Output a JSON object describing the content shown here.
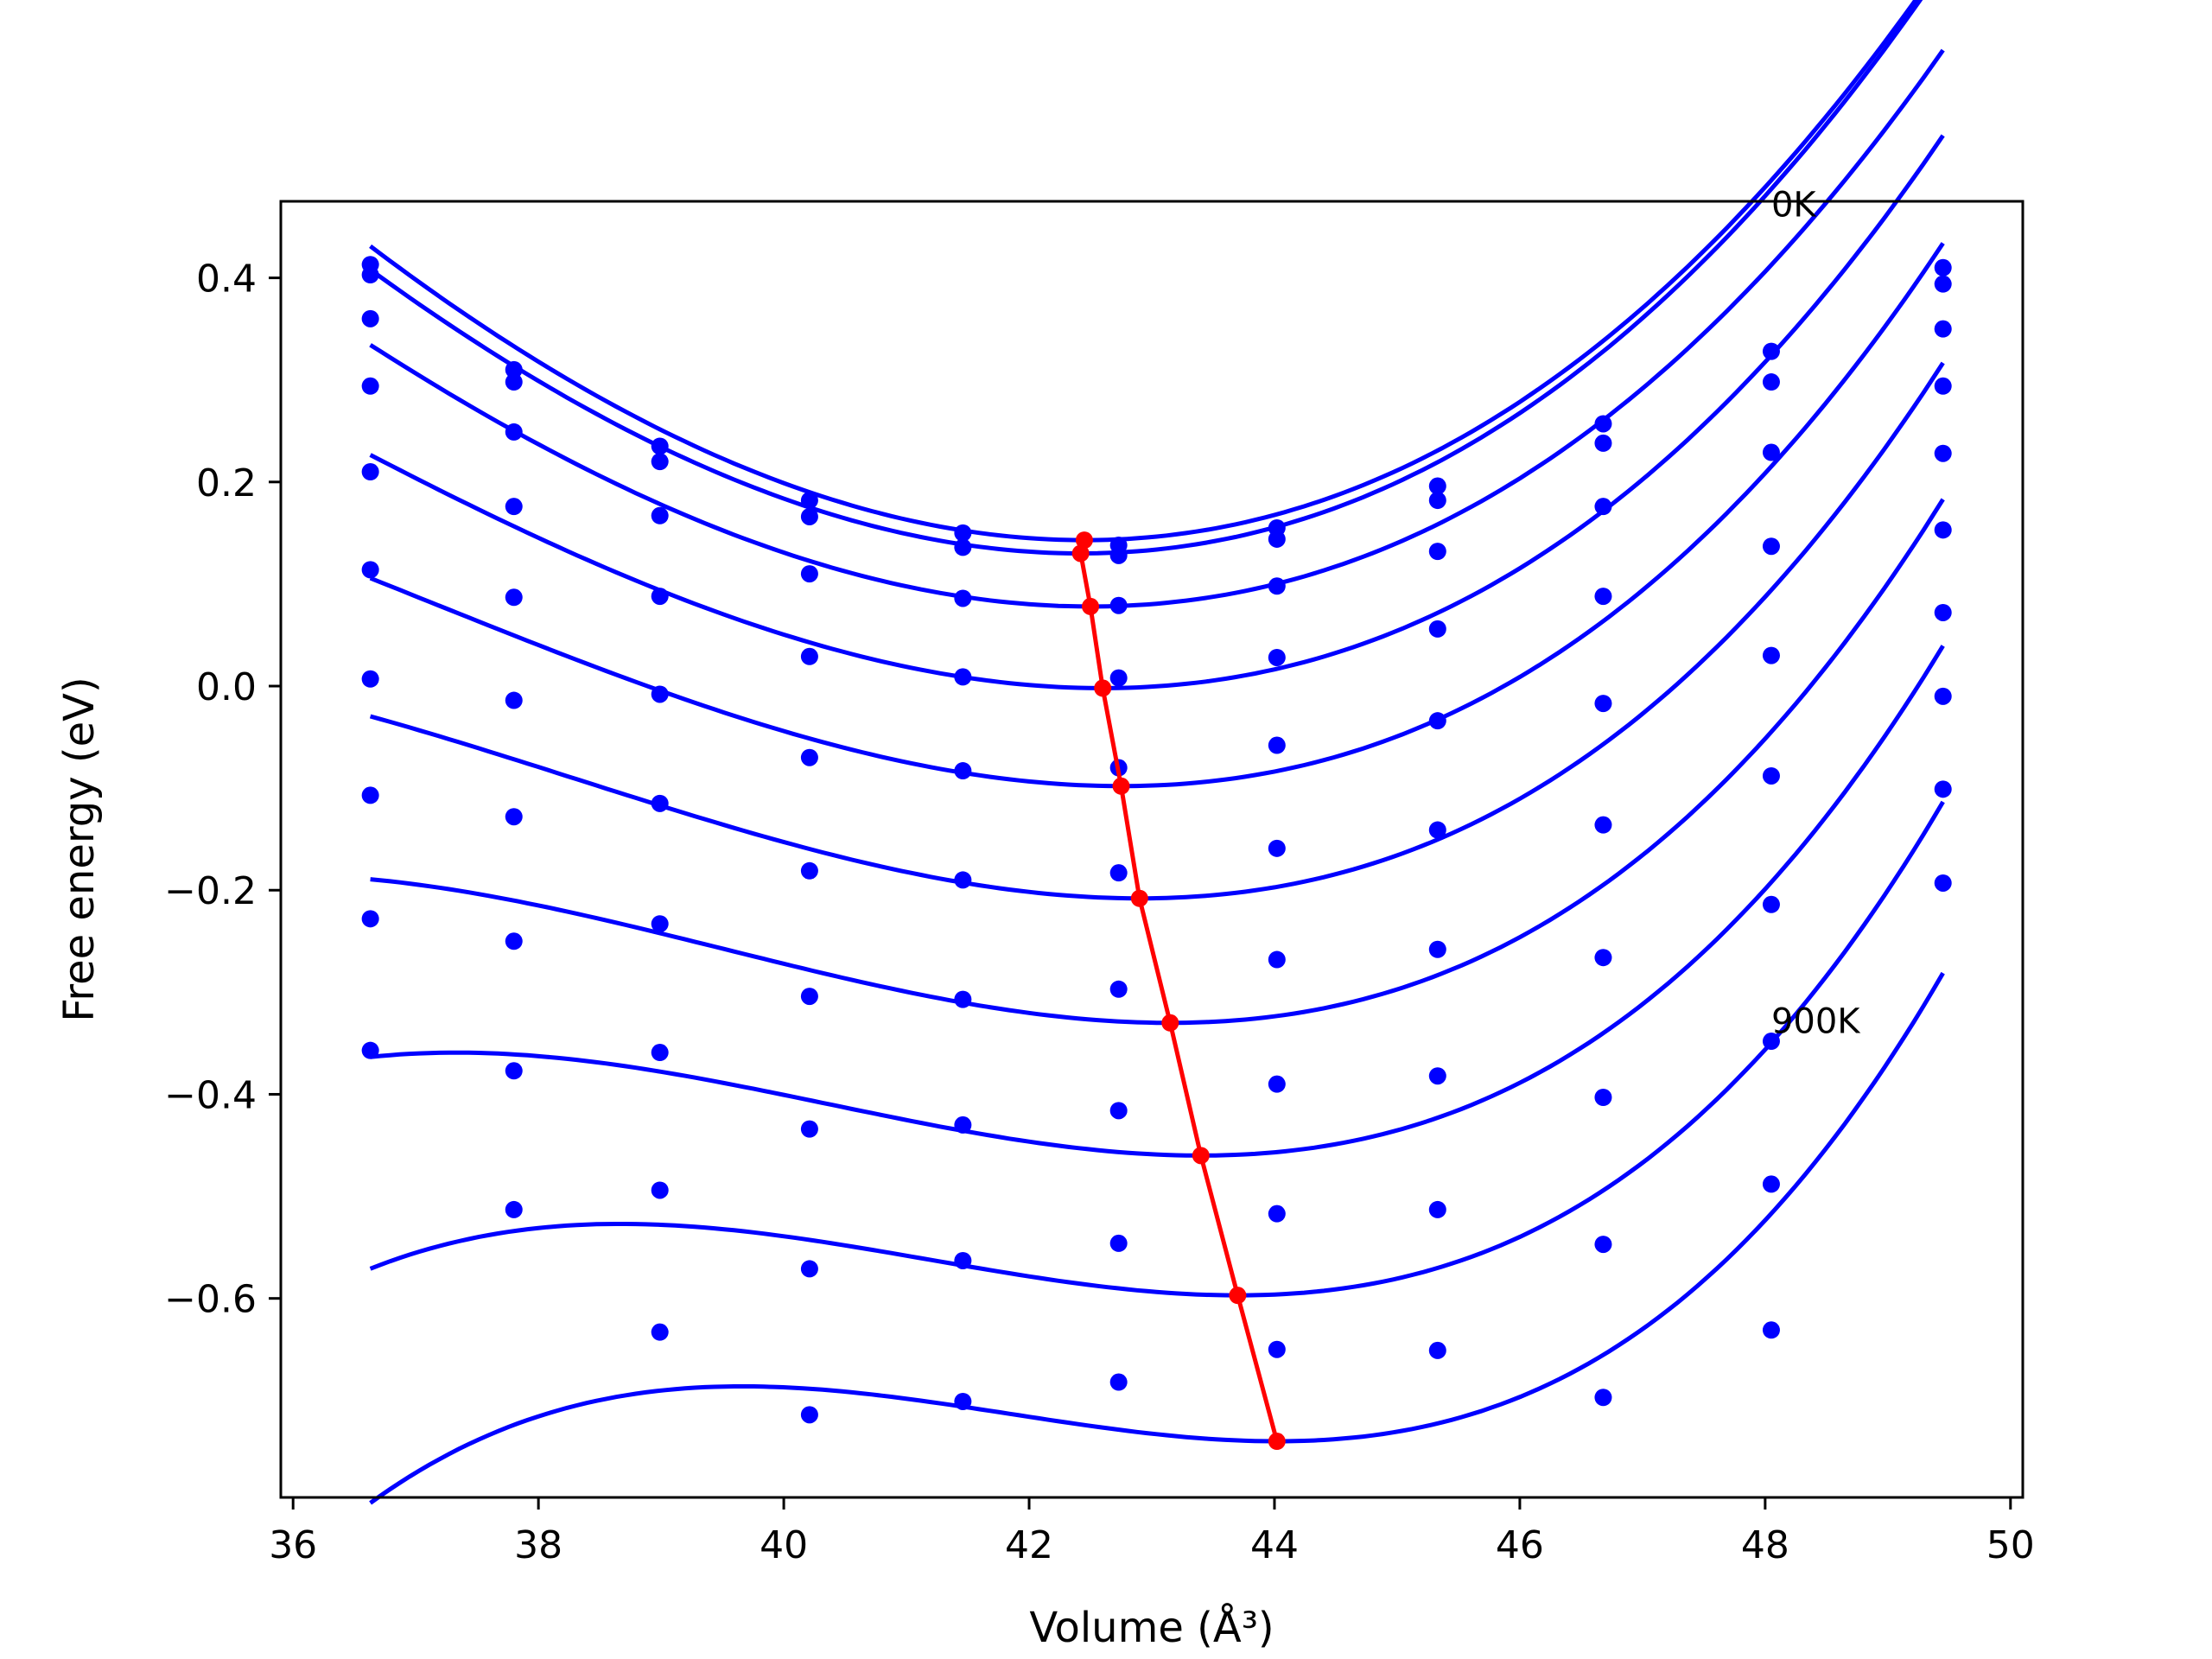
{
  "chart_data": {
    "type": "line",
    "title": "",
    "xlabel": "Volume (Å³)",
    "ylabel": "Free energy (eV)",
    "xlim": [
      35.9,
      50.1
    ],
    "ylim": [
      -0.795,
      0.475
    ],
    "xticks": [
      36,
      38,
      40,
      42,
      44,
      46,
      48,
      50
    ],
    "xtick_labels": [
      "36",
      "38",
      "40",
      "42",
      "44",
      "46",
      "48",
      "50"
    ],
    "yticks": [
      -0.6,
      -0.4,
      -0.2,
      0.0,
      0.2,
      0.4
    ],
    "ytick_labels": [
      "−0.6",
      "−0.4",
      "−0.2",
      "0.0",
      "0.2",
      "0.4"
    ],
    "grid": false,
    "legend": "none",
    "annotations": [
      {
        "text": "0K",
        "x": 48.05,
        "y": 0.46
      },
      {
        "text": "900K",
        "x": 48.05,
        "y": -0.34
      }
    ],
    "colors": {
      "series": "#0000ff",
      "minima": "#ff0000"
    },
    "volumes": [
      36.63,
      37.8,
      38.99,
      40.21,
      41.46,
      42.73,
      44.02,
      45.33,
      46.68,
      48.05,
      49.45
    ],
    "series": [
      {
        "points": [
          0.413,
          0.31,
          0.235,
          0.182,
          0.15,
          0.138,
          0.155,
          0.196,
          0.257,
          0.328,
          0.41
        ],
        "fit": {
          "v0": 42.45,
          "e0": 0.143,
          "a": 0.0099,
          "b": 0.00024
        }
      },
      {
        "points": [
          0.403,
          0.298,
          0.22,
          0.166,
          0.136,
          0.128,
          0.144,
          0.182,
          0.238,
          0.298,
          0.394
        ],
        "fit": {
          "v0": 42.42,
          "e0": 0.13,
          "a": 0.0098,
          "b": 0.00026
        }
      },
      {
        "points": [
          0.36,
          0.249,
          0.167,
          0.11,
          0.086,
          0.079,
          0.098,
          0.132,
          0.176,
          0.229,
          0.35
        ],
        "fit": {
          "v0": 42.5,
          "e0": 0.078,
          "a": 0.0092,
          "b": 0.0003
        }
      },
      {
        "points": [
          0.294,
          0.176,
          0.088,
          0.029,
          0.009,
          0.008,
          0.028,
          0.056,
          0.088,
          0.137,
          0.294
        ],
        "fit": {
          "v0": 42.6,
          "e0": -0.002,
          "a": 0.0088,
          "b": 0.0004
        }
      },
      {
        "points": [
          0.21,
          0.087,
          -0.008,
          -0.07,
          -0.083,
          -0.08,
          -0.058,
          -0.034,
          -0.017,
          0.03,
          0.228
        ],
        "fit": {
          "v0": 42.75,
          "e0": -0.098,
          "a": 0.0085,
          "b": 0.0005
        }
      },
      {
        "points": [
          0.114,
          -0.014,
          -0.115,
          -0.181,
          -0.19,
          -0.183,
          -0.159,
          -0.141,
          -0.136,
          -0.088,
          0.153
        ],
        "fit": {
          "v0": 42.9,
          "e0": -0.208,
          "a": 0.0083,
          "b": 0.0006
        }
      },
      {
        "points": [
          0.007,
          -0.128,
          -0.233,
          -0.304,
          -0.307,
          -0.297,
          -0.268,
          -0.258,
          -0.266,
          -0.214,
          0.072
        ],
        "fit": {
          "v0": 43.15,
          "e0": -0.33,
          "a": 0.0082,
          "b": 0.00075
        }
      },
      {
        "points": [
          -0.107,
          -0.25,
          -0.359,
          -0.434,
          -0.43,
          -0.416,
          -0.39,
          -0.382,
          -0.403,
          -0.348,
          -0.01
        ],
        "fit": {
          "v0": 43.4,
          "e0": -0.46,
          "a": 0.0082,
          "b": 0.0009
        }
      },
      {
        "points": [
          -0.228,
          -0.377,
          -0.494,
          -0.571,
          -0.563,
          -0.546,
          -0.517,
          -0.513,
          -0.547,
          -0.488,
          -0.101
        ],
        "fit": {
          "v0": 43.7,
          "e0": -0.597,
          "a": 0.0083,
          "b": 0.0011
        }
      },
      {
        "points": [
          -0.357,
          -0.513,
          -0.633,
          -0.714,
          -0.701,
          -0.682,
          -0.65,
          -0.651,
          -0.697,
          -0.631,
          -0.193
        ],
        "fit": {
          "v0": 44.02,
          "e0": -0.74,
          "a": 0.0085,
          "b": 0.0013
        }
      }
    ],
    "minima": {
      "x": [
        42.45,
        42.42,
        42.5,
        42.6,
        42.75,
        42.9,
        43.15,
        43.4,
        43.7,
        44.02
      ],
      "y": [
        0.143,
        0.13,
        0.078,
        -0.002,
        -0.098,
        -0.208,
        -0.33,
        -0.46,
        -0.597,
        -0.74
      ]
    }
  }
}
